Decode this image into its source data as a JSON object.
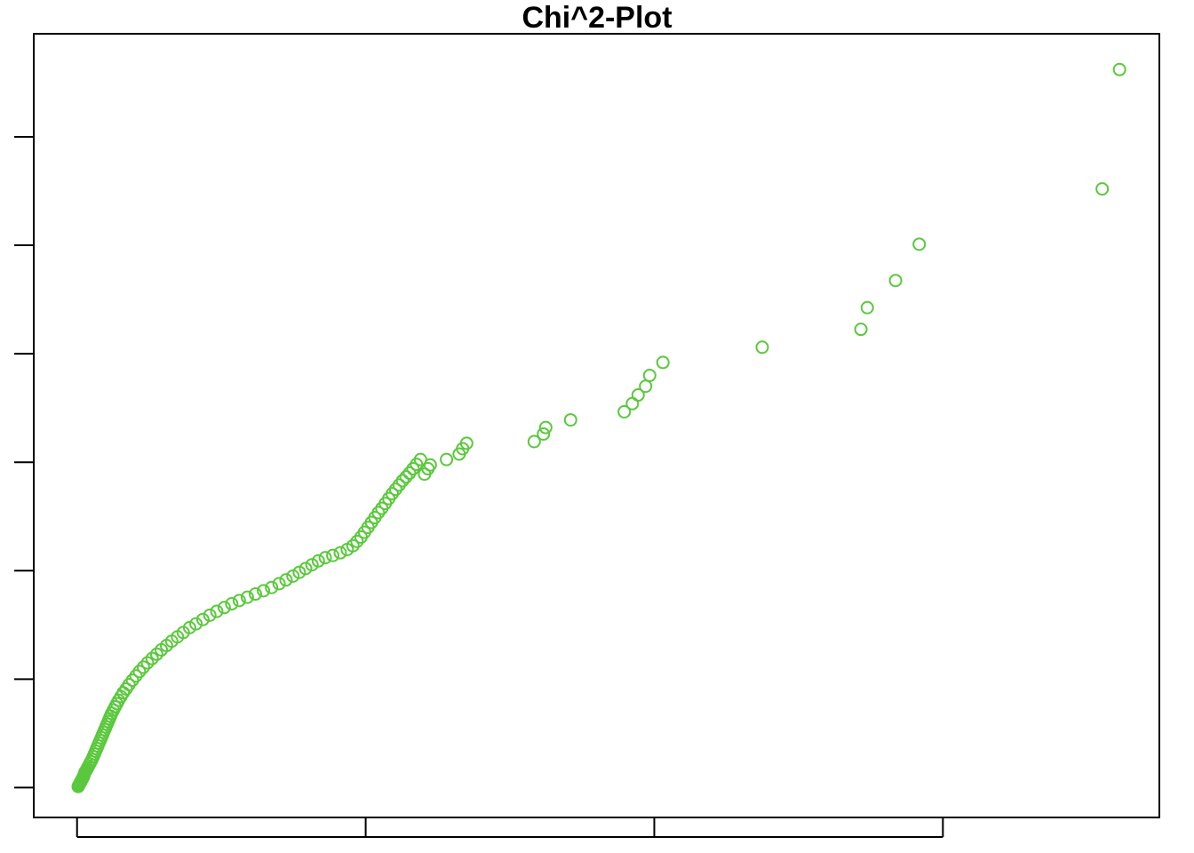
{
  "chart_data": {
    "type": "scatter",
    "title": "Chi^2-Plot",
    "xlabel": "",
    "ylabel": "",
    "x_ticks": [
      0,
      5,
      10,
      15
    ],
    "y_ticks": [
      0,
      2,
      4,
      6,
      8,
      10,
      12
    ],
    "xlim": [
      -0.75,
      18.75
    ],
    "ylim": [
      -0.55,
      13.9
    ],
    "grid": false,
    "legend": "none",
    "point_color": "#5AC83C",
    "points": [
      [
        0.02,
        0.02
      ],
      [
        0.03,
        0.04
      ],
      [
        0.04,
        0.06
      ],
      [
        0.05,
        0.08
      ],
      [
        0.06,
        0.1
      ],
      [
        0.07,
        0.12
      ],
      [
        0.08,
        0.14
      ],
      [
        0.09,
        0.16
      ],
      [
        0.1,
        0.18
      ],
      [
        0.11,
        0.2
      ],
      [
        0.12,
        0.23
      ],
      [
        0.13,
        0.26
      ],
      [
        0.14,
        0.29
      ],
      [
        0.16,
        0.32
      ],
      [
        0.18,
        0.36
      ],
      [
        0.2,
        0.4
      ],
      [
        0.22,
        0.44
      ],
      [
        0.24,
        0.48
      ],
      [
        0.26,
        0.52
      ],
      [
        0.28,
        0.57
      ],
      [
        0.3,
        0.62
      ],
      [
        0.32,
        0.67
      ],
      [
        0.34,
        0.72
      ],
      [
        0.36,
        0.77
      ],
      [
        0.38,
        0.82
      ],
      [
        0.4,
        0.87
      ],
      [
        0.42,
        0.92
      ],
      [
        0.44,
        0.97
      ],
      [
        0.46,
        1.02
      ],
      [
        0.48,
        1.07
      ],
      [
        0.5,
        1.12
      ],
      [
        0.52,
        1.17
      ],
      [
        0.54,
        1.22
      ],
      [
        0.56,
        1.27
      ],
      [
        0.58,
        1.32
      ],
      [
        0.6,
        1.37
      ],
      [
        0.63,
        1.43
      ],
      [
        0.66,
        1.49
      ],
      [
        0.69,
        1.55
      ],
      [
        0.72,
        1.61
      ],
      [
        0.76,
        1.68
      ],
      [
        0.8,
        1.75
      ],
      [
        0.85,
        1.82
      ],
      [
        0.9,
        1.9
      ],
      [
        0.96,
        1.98
      ],
      [
        1.02,
        2.06
      ],
      [
        1.08,
        2.14
      ],
      [
        1.15,
        2.22
      ],
      [
        1.22,
        2.3
      ],
      [
        1.3,
        2.38
      ],
      [
        1.38,
        2.46
      ],
      [
        1.46,
        2.54
      ],
      [
        1.55,
        2.62
      ],
      [
        1.64,
        2.7
      ],
      [
        1.74,
        2.78
      ],
      [
        1.84,
        2.86
      ],
      [
        1.95,
        2.95
      ],
      [
        2.06,
        3.02
      ],
      [
        2.18,
        3.1
      ],
      [
        2.3,
        3.18
      ],
      [
        2.42,
        3.25
      ],
      [
        2.55,
        3.32
      ],
      [
        2.68,
        3.39
      ],
      [
        2.81,
        3.45
      ],
      [
        2.95,
        3.51
      ],
      [
        3.09,
        3.57
      ],
      [
        3.23,
        3.63
      ],
      [
        3.37,
        3.69
      ],
      [
        3.5,
        3.76
      ],
      [
        3.62,
        3.83
      ],
      [
        3.74,
        3.9
      ],
      [
        3.85,
        3.97
      ],
      [
        3.96,
        4.04
      ],
      [
        4.07,
        4.11
      ],
      [
        4.18,
        4.18
      ],
      [
        4.3,
        4.24
      ],
      [
        4.43,
        4.28
      ],
      [
        4.56,
        4.33
      ],
      [
        4.68,
        4.39
      ],
      [
        4.78,
        4.46
      ],
      [
        4.85,
        4.54
      ],
      [
        4.92,
        4.62
      ],
      [
        4.98,
        4.71
      ],
      [
        5.04,
        4.8
      ],
      [
        5.1,
        4.89
      ],
      [
        5.16,
        4.98
      ],
      [
        5.22,
        5.07
      ],
      [
        5.28,
        5.15
      ],
      [
        5.34,
        5.24
      ],
      [
        5.4,
        5.33
      ],
      [
        5.46,
        5.42
      ],
      [
        5.52,
        5.5
      ],
      [
        5.58,
        5.58
      ],
      [
        5.64,
        5.66
      ],
      [
        5.7,
        5.73
      ],
      [
        5.76,
        5.8
      ],
      [
        5.82,
        5.88
      ],
      [
        5.88,
        5.96
      ],
      [
        5.95,
        6.05
      ],
      [
        6.02,
        5.78
      ],
      [
        6.08,
        5.88
      ],
      [
        6.12,
        5.95
      ],
      [
        6.4,
        6.05
      ],
      [
        6.62,
        6.15
      ],
      [
        6.68,
        6.25
      ],
      [
        6.75,
        6.35
      ],
      [
        7.92,
        6.38
      ],
      [
        8.08,
        6.52
      ],
      [
        8.12,
        6.64
      ],
      [
        8.55,
        6.78
      ],
      [
        9.48,
        6.93
      ],
      [
        9.62,
        7.08
      ],
      [
        9.72,
        7.24
      ],
      [
        9.85,
        7.4
      ],
      [
        9.92,
        7.6
      ],
      [
        10.15,
        7.84
      ],
      [
        11.87,
        8.12
      ],
      [
        13.58,
        8.45
      ],
      [
        13.69,
        8.85
      ],
      [
        14.18,
        9.35
      ],
      [
        14.59,
        10.02
      ],
      [
        17.76,
        11.04
      ],
      [
        18.06,
        13.24
      ]
    ]
  }
}
